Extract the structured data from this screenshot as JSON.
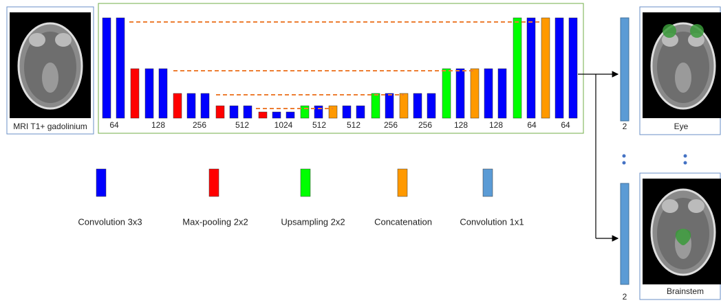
{
  "input_label": "MRI T1+ gadolinium",
  "channels": [
    "64",
    "128",
    "256",
    "512",
    "1024",
    "512",
    "512",
    "256",
    "256",
    "128",
    "128",
    "64",
    "64"
  ],
  "legend": [
    "Convolution 3x3",
    "Max-pooling 2x2",
    "Upsampling 2x2",
    "Concatenation",
    "Convolution 1x1"
  ],
  "outputs": [
    {
      "channels": "2",
      "label": "Eye"
    },
    {
      "channels": "2",
      "label": "Brainstem"
    }
  ]
}
